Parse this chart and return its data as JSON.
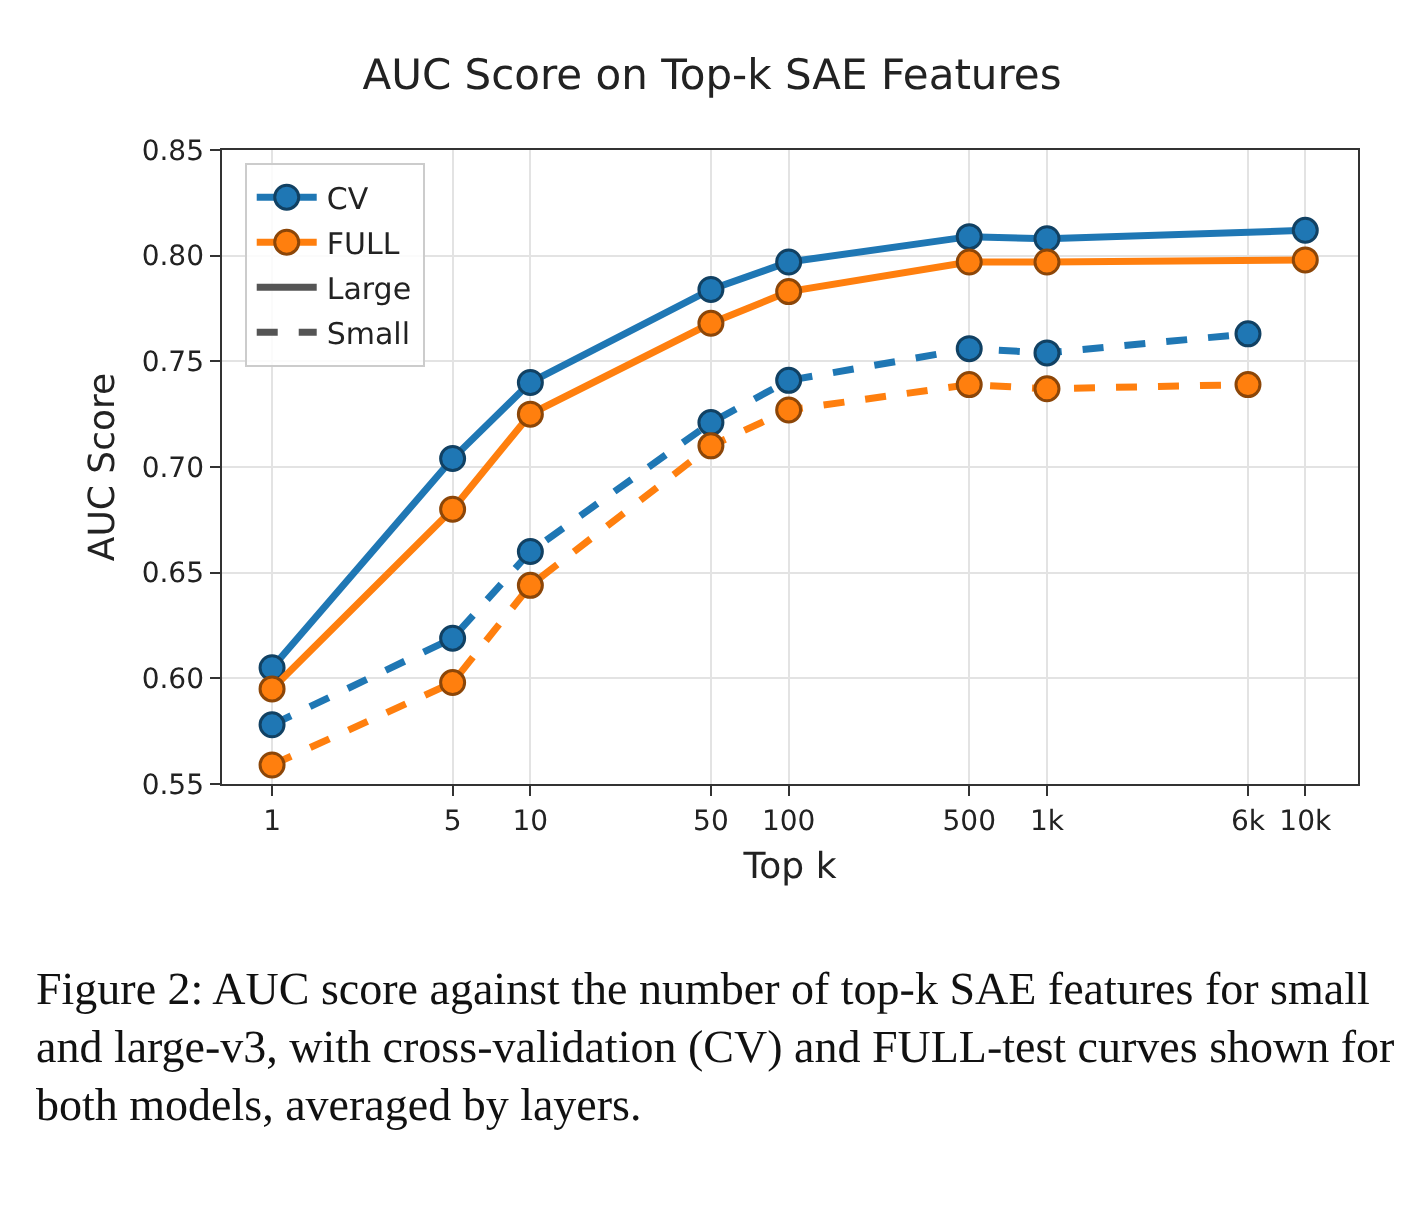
{
  "chart_data": {
    "type": "line",
    "title": "AUC Score on Top-k SAE Features",
    "xlabel": "Top k",
    "ylabel": "AUC Score",
    "log": "x",
    "grid": true,
    "legend": "top left",
    "marker": "circle",
    "xlim": [
      0.64,
      16000
    ],
    "xticks": [
      1,
      5,
      10,
      50,
      100,
      500,
      {
        "value": 1000,
        "label": "1k"
      },
      {
        "value": 6000,
        "label": "6k"
      },
      {
        "value": 10000,
        "label": "10k"
      }
    ],
    "ylim": [
      0.55,
      0.85
    ],
    "yticks": [
      {
        "value": 0.55,
        "label": "0.55"
      },
      {
        "value": 0.6,
        "label": "0.60"
      },
      {
        "value": 0.65,
        "label": "0.65"
      },
      {
        "value": 0.7,
        "label": "0.70"
      },
      {
        "value": 0.75,
        "label": "0.75"
      },
      {
        "value": 0.8,
        "label": "0.80"
      },
      {
        "value": 0.85,
        "label": "0.85"
      }
    ],
    "series": [
      {
        "name": "CV",
        "color": "#1f77b4",
        "line_style": "solid",
        "x": [
          1,
          5,
          10,
          50,
          100,
          500,
          1000,
          10000
        ],
        "values": [
          0.605,
          0.704,
          0.74,
          0.784,
          0.797,
          0.809,
          0.808,
          0.812
        ]
      },
      {
        "name": "FULL",
        "color": "#ff7f0e",
        "line_style": "solid",
        "x": [
          1,
          5,
          10,
          50,
          100,
          500,
          1000,
          10000
        ],
        "values": [
          0.595,
          0.68,
          0.725,
          0.768,
          0.783,
          0.797,
          0.797,
          0.798
        ]
      },
      {
        "color": "#1f77b4",
        "line_style": "dashed",
        "x": [
          1,
          5,
          10,
          50,
          100,
          500,
          1000,
          6000
        ],
        "values": [
          0.578,
          0.619,
          0.66,
          0.721,
          0.741,
          0.756,
          0.754,
          0.763
        ]
      },
      {
        "color": "#ff7f0e",
        "line_style": "dashed",
        "x": [
          1,
          5,
          10,
          50,
          100,
          500,
          1000,
          6000
        ],
        "values": [
          0.559,
          0.598,
          0.644,
          0.71,
          0.727,
          0.739,
          0.737,
          0.739
        ]
      },
      {
        "name": "Large",
        "color": "#555555",
        "line_style": "solid",
        "marker": "none"
      },
      {
        "name": "Small",
        "color": "#555555",
        "line_style": "dashed",
        "marker": "none"
      }
    ],
    "annotations": [
      "Figure 2: AUC score against the number of top-k SAE features for small and large-v3, with cross-validation (CV) and FULL-test curves shown for both models, averaged by layers."
    ]
  }
}
